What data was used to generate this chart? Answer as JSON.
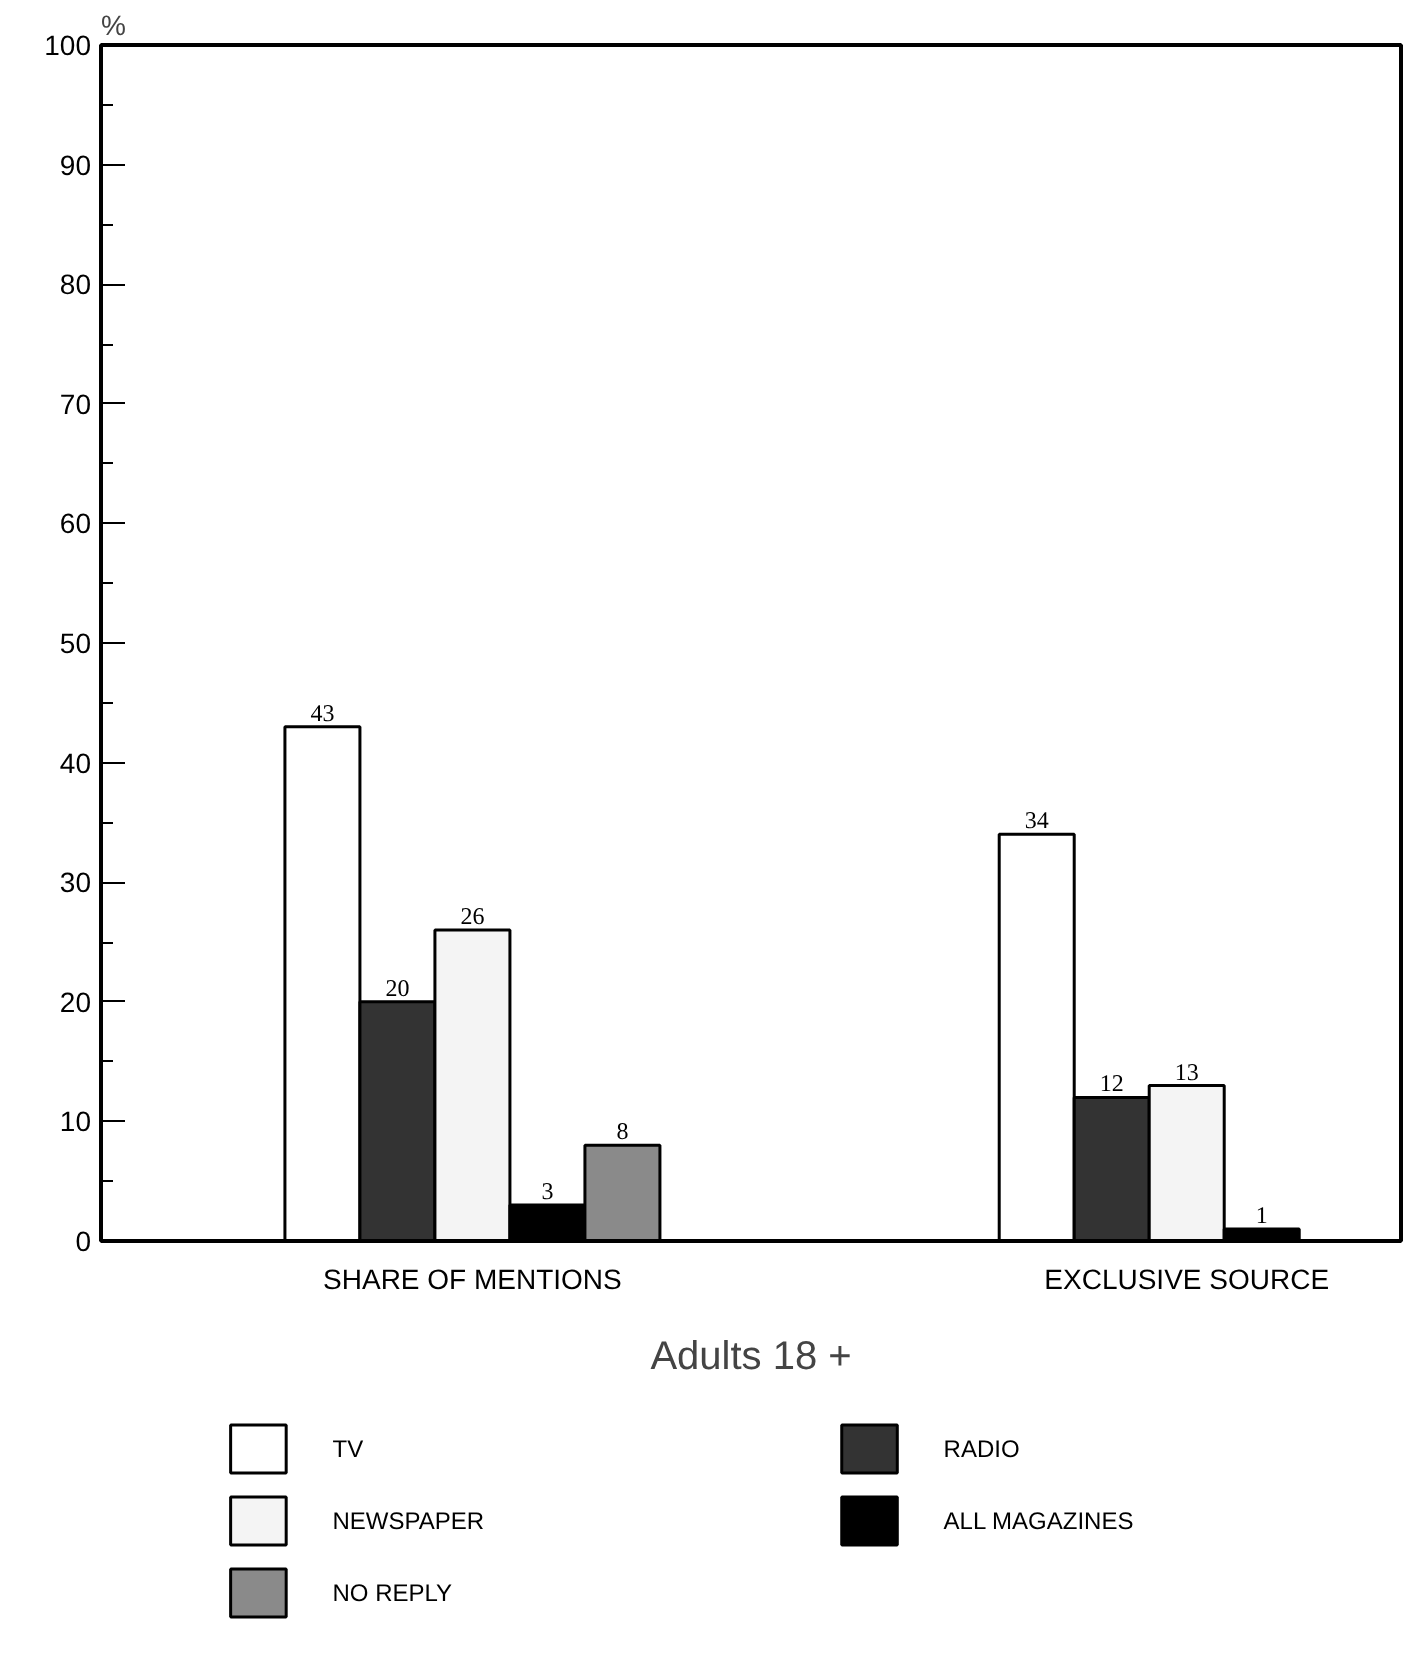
{
  "chart_data": {
    "type": "bar",
    "title": "Adults 18 +",
    "ylabel": "%",
    "categories": [
      "SHARE OF MENTIONS",
      "EXCLUSIVE SOURCE"
    ],
    "series": [
      {
        "name": "TV",
        "color": "#ffffff",
        "values": [
          43,
          34
        ]
      },
      {
        "name": "RADIO",
        "color": "#333333",
        "values": [
          20,
          12
        ]
      },
      {
        "name": "NEWSPAPER",
        "color": "#f4f4f4",
        "values": [
          26,
          13
        ]
      },
      {
        "name": "ALL MAGAZINES",
        "color": "#000000",
        "values": [
          3,
          1
        ]
      },
      {
        "name": "NO REPLY",
        "color": "#8a8a8a",
        "values": [
          8,
          null
        ]
      }
    ],
    "ylim": [
      0,
      100
    ],
    "yticks": [
      0,
      10,
      20,
      30,
      40,
      50,
      60,
      70,
      80,
      90,
      100
    ],
    "data_labels": true,
    "grid": false,
    "legend": "bottom"
  }
}
